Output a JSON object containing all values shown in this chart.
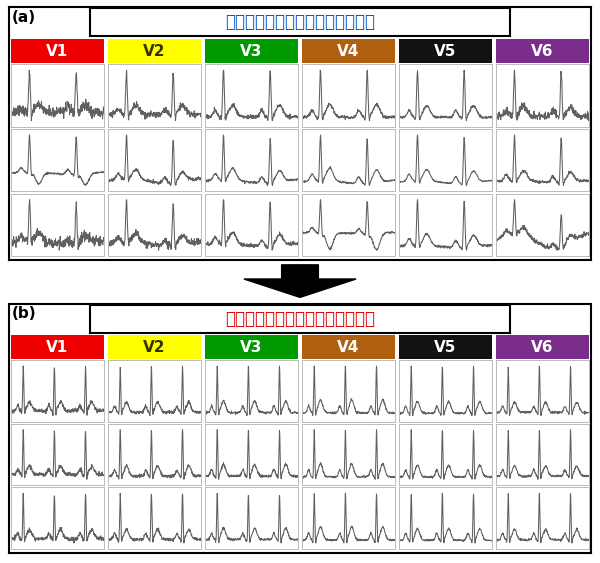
{
  "title_a": "最適化前の起毛ドライ電極ウェア",
  "title_b": "最適化後の起毛ドライ電極ウェア",
  "label_a": "(a)",
  "label_b": "(b)",
  "title_color_a": "#0055CC",
  "title_color_b": "#DD0000",
  "channels": [
    "V1",
    "V2",
    "V3",
    "V4",
    "V5",
    "V6"
  ],
  "channel_colors": [
    "#EE0000",
    "#FFFF00",
    "#009900",
    "#B06010",
    "#111111",
    "#7B2D8B"
  ],
  "channel_text_colors": [
    "#FFFFFF",
    "#333300",
    "#FFFFFF",
    "#FFFFFF",
    "#FFFFFF",
    "#FFFFFF"
  ],
  "bg_color": "#FFFFFF",
  "ecg_line_color": "#606060",
  "border_color": "#000000",
  "cell_border_color": "#BBBBBB",
  "rows": 3,
  "cols": 6,
  "figwidth": 6.0,
  "figheight": 5.63,
  "dpi": 100
}
